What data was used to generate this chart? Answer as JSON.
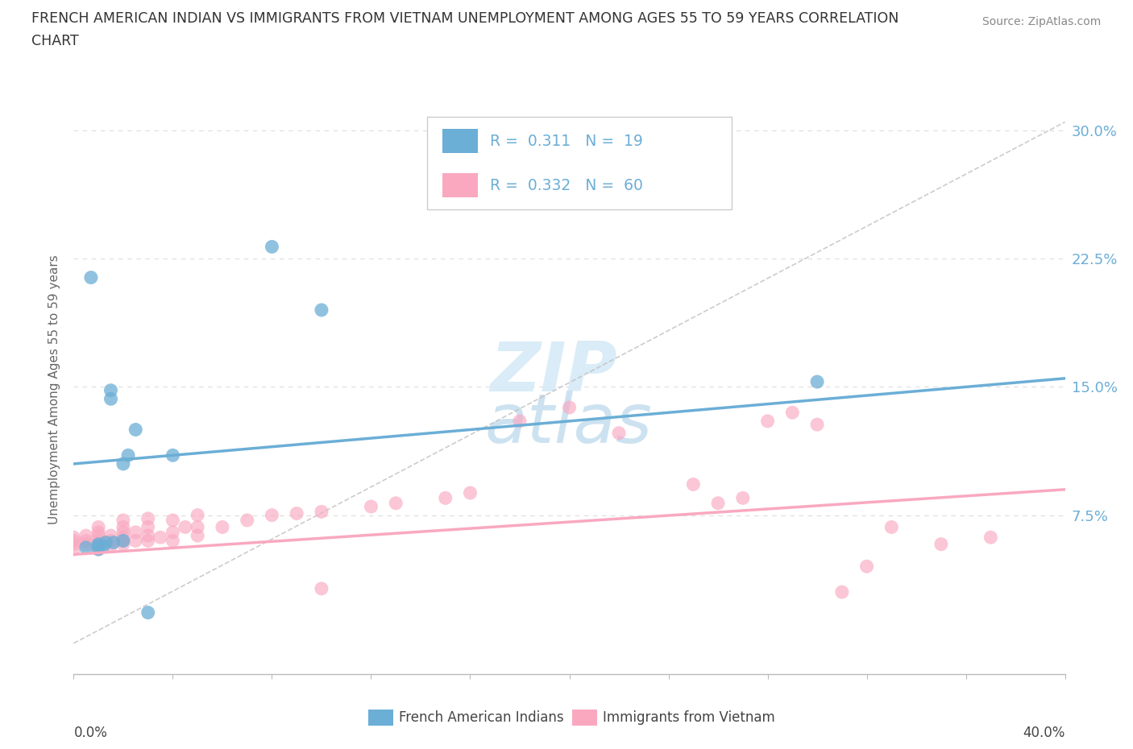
{
  "title_line1": "FRENCH AMERICAN INDIAN VS IMMIGRANTS FROM VIETNAM UNEMPLOYMENT AMONG AGES 55 TO 59 YEARS CORRELATION",
  "title_line2": "CHART",
  "source": "Source: ZipAtlas.com",
  "ylabel": "Unemployment Among Ages 55 to 59 years",
  "xmin": 0.0,
  "xmax": 0.4,
  "ymin": -0.018,
  "ymax": 0.315,
  "yticks": [
    0.0,
    0.075,
    0.15,
    0.225,
    0.3
  ],
  "ytick_labels": [
    "",
    "7.5%",
    "15.0%",
    "22.5%",
    "30.0%"
  ],
  "blue_color": "#6baed6",
  "pink_color": "#f9a8c0",
  "dashed_color": "#c0c0c0",
  "grid_color": "#dddddd",
  "legend_r1": "R =  0.311   N =  19",
  "legend_r2": "R =  0.332   N =  60",
  "legend_series1": "French American Indians",
  "legend_series2": "Immigrants from Vietnam",
  "blue_scatter": [
    [
      0.005,
      0.056
    ],
    [
      0.007,
      0.214
    ],
    [
      0.01,
      0.055
    ],
    [
      0.01,
      0.057
    ],
    [
      0.01,
      0.058
    ],
    [
      0.012,
      0.057
    ],
    [
      0.013,
      0.059
    ],
    [
      0.015,
      0.148
    ],
    [
      0.015,
      0.143
    ],
    [
      0.016,
      0.059
    ],
    [
      0.02,
      0.06
    ],
    [
      0.02,
      0.105
    ],
    [
      0.022,
      0.11
    ],
    [
      0.025,
      0.125
    ],
    [
      0.03,
      0.018
    ],
    [
      0.04,
      0.11
    ],
    [
      0.08,
      0.232
    ],
    [
      0.1,
      0.195
    ],
    [
      0.3,
      0.153
    ]
  ],
  "pink_scatter": [
    [
      0.0,
      0.058
    ],
    [
      0.0,
      0.06
    ],
    [
      0.0,
      0.062
    ],
    [
      0.0,
      0.055
    ],
    [
      0.005,
      0.058
    ],
    [
      0.005,
      0.06
    ],
    [
      0.005,
      0.063
    ],
    [
      0.01,
      0.055
    ],
    [
      0.01,
      0.058
    ],
    [
      0.01,
      0.06
    ],
    [
      0.01,
      0.063
    ],
    [
      0.01,
      0.065
    ],
    [
      0.01,
      0.068
    ],
    [
      0.015,
      0.057
    ],
    [
      0.015,
      0.06
    ],
    [
      0.015,
      0.063
    ],
    [
      0.02,
      0.058
    ],
    [
      0.02,
      0.06
    ],
    [
      0.02,
      0.062
    ],
    [
      0.02,
      0.065
    ],
    [
      0.02,
      0.068
    ],
    [
      0.02,
      0.072
    ],
    [
      0.025,
      0.06
    ],
    [
      0.025,
      0.065
    ],
    [
      0.03,
      0.06
    ],
    [
      0.03,
      0.063
    ],
    [
      0.03,
      0.068
    ],
    [
      0.03,
      0.073
    ],
    [
      0.035,
      0.062
    ],
    [
      0.04,
      0.06
    ],
    [
      0.04,
      0.065
    ],
    [
      0.04,
      0.072
    ],
    [
      0.045,
      0.068
    ],
    [
      0.05,
      0.063
    ],
    [
      0.05,
      0.068
    ],
    [
      0.05,
      0.075
    ],
    [
      0.06,
      0.068
    ],
    [
      0.07,
      0.072
    ],
    [
      0.08,
      0.075
    ],
    [
      0.09,
      0.076
    ],
    [
      0.1,
      0.077
    ],
    [
      0.1,
      0.032
    ],
    [
      0.12,
      0.08
    ],
    [
      0.13,
      0.082
    ],
    [
      0.15,
      0.085
    ],
    [
      0.16,
      0.088
    ],
    [
      0.18,
      0.13
    ],
    [
      0.2,
      0.138
    ],
    [
      0.22,
      0.123
    ],
    [
      0.25,
      0.093
    ],
    [
      0.26,
      0.082
    ],
    [
      0.27,
      0.085
    ],
    [
      0.28,
      0.13
    ],
    [
      0.29,
      0.135
    ],
    [
      0.3,
      0.128
    ],
    [
      0.31,
      0.03
    ],
    [
      0.32,
      0.045
    ],
    [
      0.33,
      0.068
    ],
    [
      0.35,
      0.058
    ],
    [
      0.37,
      0.062
    ]
  ],
  "blue_line": [
    [
      0.0,
      0.105
    ],
    [
      0.4,
      0.155
    ]
  ],
  "pink_line": [
    [
      0.0,
      0.052
    ],
    [
      0.4,
      0.09
    ]
  ],
  "dashed_line": [
    [
      0.0,
      0.0
    ],
    [
      0.4,
      0.305
    ]
  ],
  "watermark_top": "ZIP",
  "watermark_bot": "atlas",
  "background": "#ffffff"
}
